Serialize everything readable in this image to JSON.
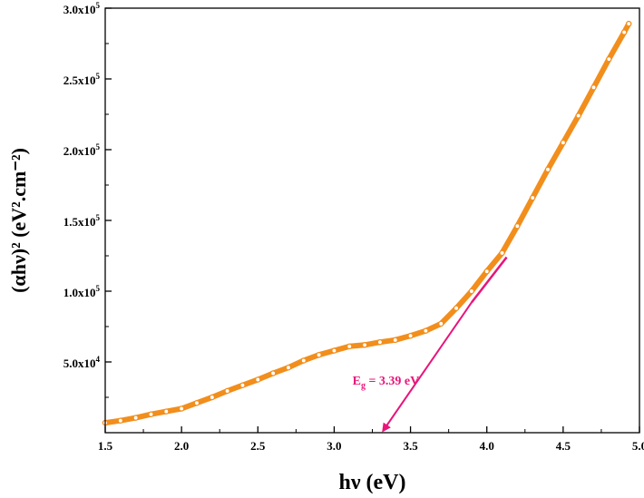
{
  "chart_data": {
    "type": "scatter",
    "title": "",
    "xlabel": "hν (eV)",
    "ylabel": "(αhν)² (eV².cm⁻²)",
    "xlim": [
      1.5,
      5.0
    ],
    "ylim": [
      0,
      300000
    ],
    "x_ticks": [
      "1.5",
      "2.0",
      "2.5",
      "3.0",
      "3.5",
      "4.0",
      "4.5",
      "5.0"
    ],
    "y_ticks": [
      {
        "value": 50000,
        "mantissa": "5.0x10",
        "exp": "4"
      },
      {
        "value": 100000,
        "mantissa": "1.0x10",
        "exp": "5"
      },
      {
        "value": 150000,
        "mantissa": "1.5x10",
        "exp": "5"
      },
      {
        "value": 200000,
        "mantissa": "2.0x10",
        "exp": "5"
      },
      {
        "value": 250000,
        "mantissa": "2.5x10",
        "exp": "5"
      },
      {
        "value": 300000,
        "mantissa": "3.0x10",
        "exp": "5"
      }
    ],
    "series": [
      {
        "color": "#f28e1c",
        "x": [
          1.5,
          1.6,
          1.7,
          1.8,
          1.9,
          2.0,
          2.1,
          2.2,
          2.3,
          2.4,
          2.5,
          2.6,
          2.7,
          2.8,
          2.9,
          3.0,
          3.1,
          3.2,
          3.3,
          3.4,
          3.5,
          3.6,
          3.7,
          3.8,
          3.9,
          4.0,
          4.1,
          4.2,
          4.3,
          4.4,
          4.5,
          4.6,
          4.7,
          4.8,
          4.9,
          4.93
        ],
        "y": [
          7000,
          8500,
          10500,
          13000,
          15000,
          17000,
          21000,
          25000,
          29500,
          33500,
          37500,
          42000,
          46000,
          51000,
          55000,
          58000,
          61000,
          62000,
          64000,
          65500,
          68500,
          72000,
          77000,
          88000,
          100000,
          114000,
          127000,
          146000,
          166000,
          186000,
          205000,
          224000,
          244000,
          264000,
          283000,
          289000
        ]
      }
    ],
    "fit_line": {
      "color": "#e8157a",
      "x": [
        3.9,
        4.13
      ],
      "y": [
        92000,
        124000
      ]
    },
    "arrow": {
      "color": "#e8157a",
      "from": [
        3.9,
        92000
      ],
      "to": [
        3.32,
        0
      ]
    },
    "annotation": {
      "prefix": "E",
      "sub": "g",
      "suffix": " = 3.39 eV",
      "color": "#e8157a",
      "x": 3.12,
      "y": 34000
    }
  }
}
